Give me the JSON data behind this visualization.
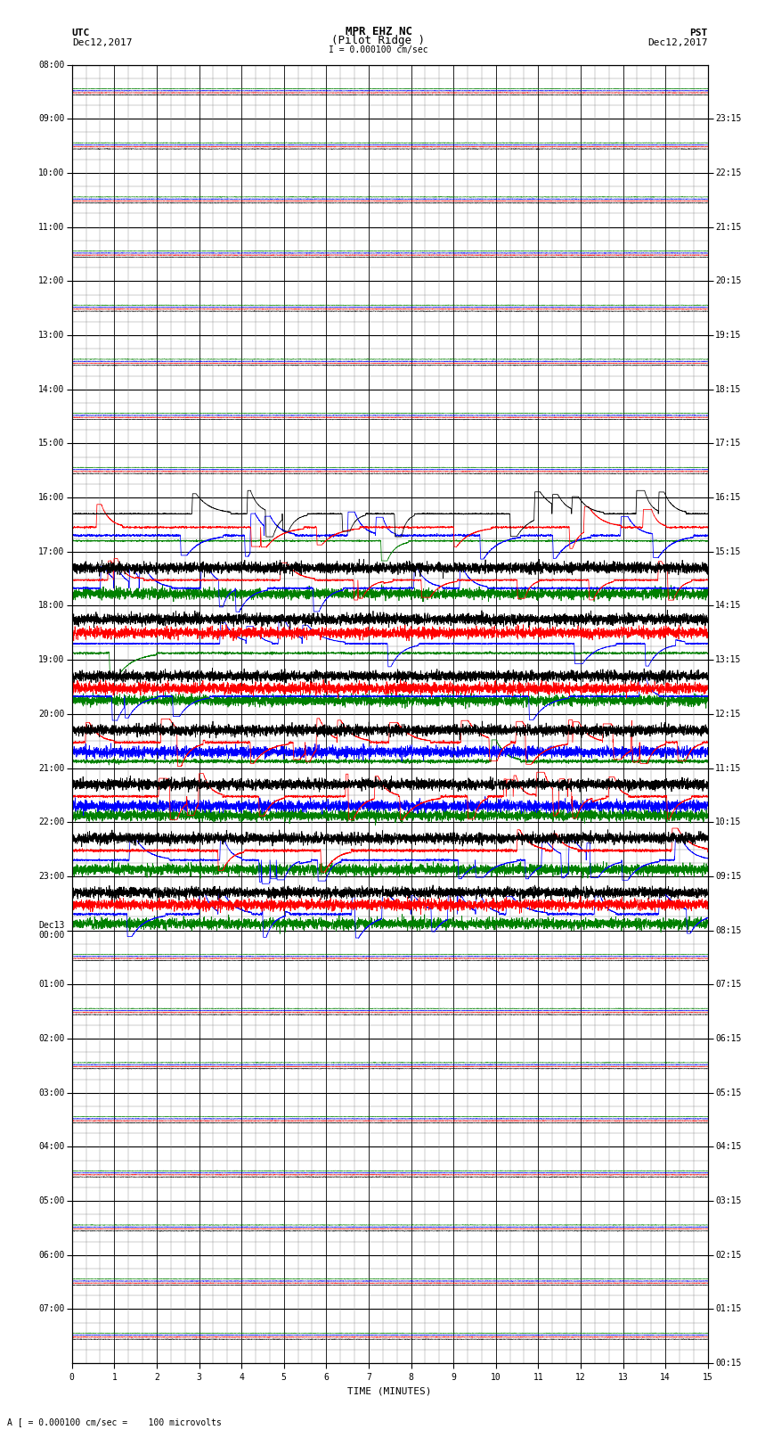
{
  "title_line1": "MPR EHZ NC",
  "title_line2": "(Pilot Ridge )",
  "scale_label": "I = 0.000100 cm/sec",
  "footer_label": "A [ = 0.000100 cm/sec =    100 microvolts",
  "xlabel": "TIME (MINUTES)",
  "utc_rows": [
    "08:00",
    "09:00",
    "10:00",
    "11:00",
    "12:00",
    "13:00",
    "14:00",
    "15:00",
    "16:00",
    "17:00",
    "18:00",
    "19:00",
    "20:00",
    "21:00",
    "22:00",
    "23:00",
    "Dec13\n00:00",
    "01:00",
    "02:00",
    "03:00",
    "04:00",
    "05:00",
    "06:00",
    "07:00"
  ],
  "pst_rows": [
    "00:15",
    "01:15",
    "02:15",
    "03:15",
    "04:15",
    "05:15",
    "06:15",
    "07:15",
    "08:15",
    "09:15",
    "10:15",
    "11:15",
    "12:15",
    "13:15",
    "14:15",
    "15:15",
    "16:15",
    "17:15",
    "18:15",
    "19:15",
    "20:15",
    "21:15",
    "22:15",
    "23:15"
  ],
  "n_rows": 24,
  "sub_rows": 4,
  "minutes_per_row": 15,
  "bg_color": "#ffffff",
  "major_grid_color": "#000000",
  "minor_grid_color": "#888888",
  "font_size_title": 9,
  "font_size_labels": 8,
  "font_size_axis": 7,
  "fig_width": 8.5,
  "fig_height": 16.13
}
